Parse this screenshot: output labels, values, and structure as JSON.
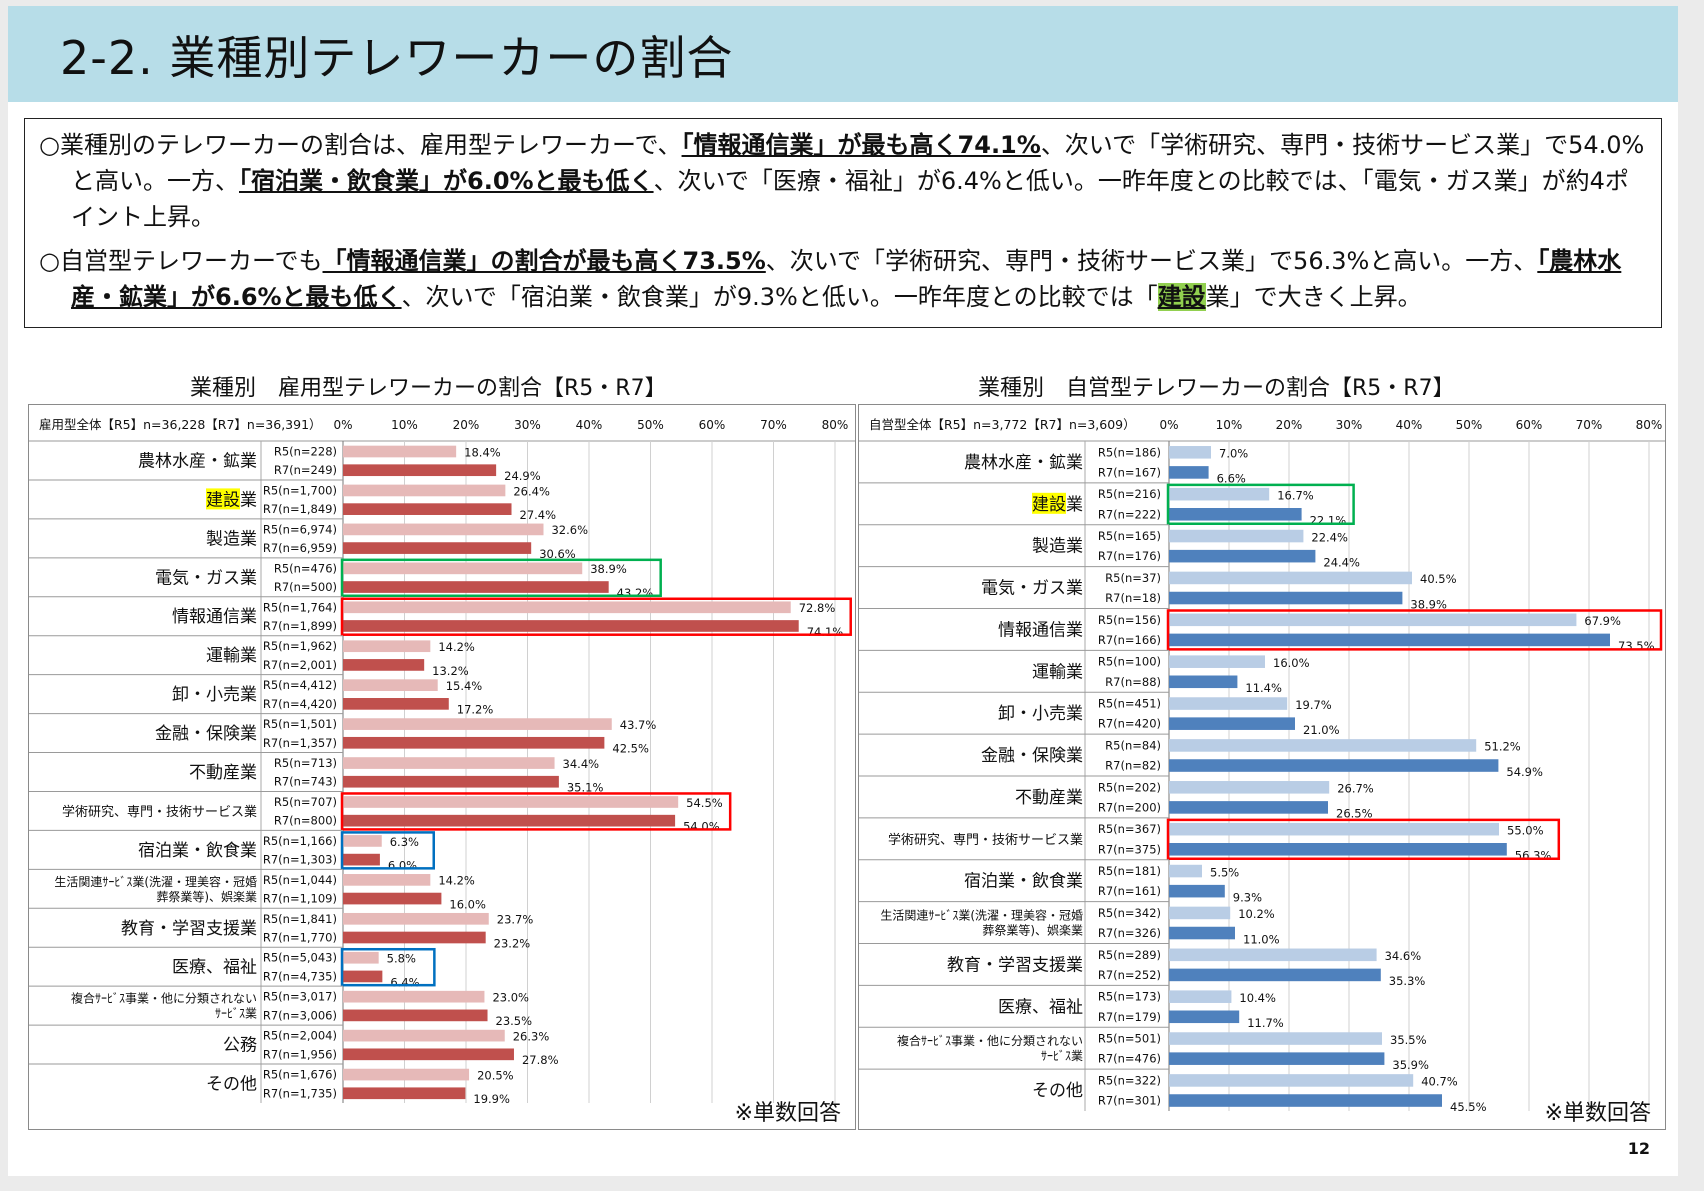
{
  "slide": {
    "title": "2-2. 業種別テレワーカーの割合",
    "page_number": "12",
    "summary": [
      [
        {
          "t": "○業種別のテレワーカーの割合は、雇用型テレワーカーで、"
        },
        {
          "t": "「情報通信業」が最も高く74.1%",
          "s": "hl"
        },
        {
          "t": "、次いで「学術研究、専門・技術サービス業」で54.0%と高い。一方、"
        },
        {
          "t": "「宿泊業・飲食業」が6.0%と最も低く",
          "s": "hl"
        },
        {
          "t": "、次いで「医療・福祉」が6.4%と低い。一昨年度との比較では、「電気・ガス業」が約4ポイント上昇。"
        }
      ],
      [
        {
          "t": "○自営型テレワーカーでも"
        },
        {
          "t": "「情報通信業」の割合が最も高く73.5%",
          "s": "hl"
        },
        {
          "t": "、次いで「学術研究、専門・技術サービス業」で56.3%と高い。一方、"
        },
        {
          "t": "「農林水産・鉱業」が6.6%と最も低く",
          "s": "hl"
        },
        {
          "t": "、次いで「宿泊業・飲食業」が9.3%と低い。一昨年度との比較では「"
        },
        {
          "t": "建設",
          "s": "mark"
        },
        {
          "t": "業」で大きく上昇。"
        }
      ]
    ],
    "note_left": "※単数回答",
    "note_right": "※単数回答"
  },
  "colors": {
    "left_r5": "#e6b9b8",
    "left_r7": "#c0504d",
    "right_r5": "#b9cde5",
    "right_r7": "#4f81bd",
    "box_red": "#ff0000",
    "box_green": "#00b050",
    "box_blue": "#0070c0",
    "highlight_yellow": "#ffff00"
  },
  "chart_data": [
    {
      "type": "bar",
      "orientation": "horizontal",
      "title": "業種別　雇用型テレワーカーの割合【R5・R7】",
      "header_label": "雇用型全体【R5】n=36,228【R7】n=36,391）",
      "xlim": [
        0,
        80
      ],
      "x_ticks": [
        "0%",
        "10%",
        "20%",
        "30%",
        "40%",
        "50%",
        "60%",
        "70%",
        "80%"
      ],
      "grid": true,
      "categories": [
        {
          "name": "農林水産・鉱業",
          "r5": {
            "label": "R5(n=228)",
            "value": 18.4,
            "text": "18.4%"
          },
          "r7": {
            "label": "R7(n=249)",
            "value": 24.9,
            "text": "24.9%"
          }
        },
        {
          "name": "建設業",
          "r5": {
            "label": "R5(n=1,700)",
            "value": 26.4,
            "text": "26.4%"
          },
          "r7": {
            "label": "R7(n=1,849)",
            "value": 27.4,
            "text": "27.4%"
          }
        },
        {
          "name": "製造業",
          "r5": {
            "label": "R5(n=6,974)",
            "value": 32.6,
            "text": "32.6%"
          },
          "r7": {
            "label": "R7(n=6,959)",
            "value": 30.6,
            "text": "30.6%"
          }
        },
        {
          "name": "電気・ガス業",
          "r5": {
            "label": "R5(n=476)",
            "value": 38.9,
            "text": "38.9%"
          },
          "r7": {
            "label": "R7(n=500)",
            "value": 43.2,
            "text": "43.2%"
          },
          "box": "green"
        },
        {
          "name": "情報通信業",
          "r5": {
            "label": "R5(n=1,764)",
            "value": 72.8,
            "text": "72.8%"
          },
          "r7": {
            "label": "R7(n=1,899)",
            "value": 74.1,
            "text": "74.1%"
          },
          "box": "red"
        },
        {
          "name": "運輸業",
          "r5": {
            "label": "R5(n=1,962)",
            "value": 14.2,
            "text": "14.2%"
          },
          "r7": {
            "label": "R7(n=2,001)",
            "value": 13.2,
            "text": "13.2%"
          }
        },
        {
          "name": "卸・小売業",
          "r5": {
            "label": "R5(n=4,412)",
            "value": 15.4,
            "text": "15.4%"
          },
          "r7": {
            "label": "R7(n=4,420)",
            "value": 17.2,
            "text": "17.2%"
          }
        },
        {
          "name": "金融・保険業",
          "r5": {
            "label": "R5(n=1,501)",
            "value": 43.7,
            "text": "43.7%"
          },
          "r7": {
            "label": "R7(n=1,357)",
            "value": 42.5,
            "text": "42.5%"
          }
        },
        {
          "name": "不動産業",
          "r5": {
            "label": "R5(n=713)",
            "value": 34.4,
            "text": "34.4%"
          },
          "r7": {
            "label": "R7(n=743)",
            "value": 35.1,
            "text": "35.1%"
          }
        },
        {
          "name": "学術研究、専門・技術サービス業",
          "r5": {
            "label": "R5(n=707)",
            "value": 54.5,
            "text": "54.5%"
          },
          "r7": {
            "label": "R7(n=800)",
            "value": 54.0,
            "text": "54.0%"
          },
          "box": "red"
        },
        {
          "name": "宿泊業・飲食業",
          "r5": {
            "label": "R5(n=1,166)",
            "value": 6.3,
            "text": "6.3%"
          },
          "r7": {
            "label": "R7(n=1,303)",
            "value": 6.0,
            "text": "6.0%"
          },
          "box": "blue"
        },
        {
          "name": "生活関連ｻｰﾋﾞｽ業(洗濯・理美容・冠婚|葬祭業等)、娯楽業",
          "r5": {
            "label": "R5(n=1,044)",
            "value": 14.2,
            "text": "14.2%"
          },
          "r7": {
            "label": "R7(n=1,109)",
            "value": 16.0,
            "text": "16.0%"
          }
        },
        {
          "name": "教育・学習支援業",
          "r5": {
            "label": "R5(n=1,841)",
            "value": 23.7,
            "text": "23.7%"
          },
          "r7": {
            "label": "R7(n=1,770)",
            "value": 23.2,
            "text": "23.2%"
          }
        },
        {
          "name": "医療、福祉",
          "r5": {
            "label": "R5(n=5,043)",
            "value": 5.8,
            "text": "5.8%"
          },
          "r7": {
            "label": "R7(n=4,735)",
            "value": 6.4,
            "text": "6.4%"
          },
          "box": "blue"
        },
        {
          "name": "複合ｻｰﾋﾞｽ事業・他に分類されない|ｻｰﾋﾞｽ業",
          "r5": {
            "label": "R5(n=3,017)",
            "value": 23.0,
            "text": "23.0%"
          },
          "r7": {
            "label": "R7(n=3,006)",
            "value": 23.5,
            "text": "23.5%"
          }
        },
        {
          "name": "公務",
          "r5": {
            "label": "R5(n=2,004)",
            "value": 26.3,
            "text": "26.3%"
          },
          "r7": {
            "label": "R7(n=1,956)",
            "value": 27.8,
            "text": "27.8%"
          }
        },
        {
          "name": "その他",
          "r5": {
            "label": "R5(n=1,676)",
            "value": 20.5,
            "text": "20.5%"
          },
          "r7": {
            "label": "R7(n=1,735)",
            "value": 19.9,
            "text": "19.9%"
          }
        }
      ]
    },
    {
      "type": "bar",
      "orientation": "horizontal",
      "title": "業種別　自営型テレワーカーの割合【R5・R7】",
      "header_label": "自営型全体【R5】n=3,772【R7】n=3,609）",
      "xlim": [
        0,
        80
      ],
      "x_ticks": [
        "0%",
        "10%",
        "20%",
        "30%",
        "40%",
        "50%",
        "60%",
        "70%",
        "80%"
      ],
      "grid": true,
      "categories": [
        {
          "name": "農林水産・鉱業",
          "r5": {
            "label": "R5(n=186)",
            "value": 7.0,
            "text": "7.0%"
          },
          "r7": {
            "label": "R7(n=167)",
            "value": 6.6,
            "text": "6.6%"
          }
        },
        {
          "name": "建設業",
          "r5": {
            "label": "R5(n=216)",
            "value": 16.7,
            "text": "16.7%"
          },
          "r7": {
            "label": "R7(n=222)",
            "value": 22.1,
            "text": "22.1%"
          },
          "box": "green"
        },
        {
          "name": "製造業",
          "r5": {
            "label": "R5(n=165)",
            "value": 22.4,
            "text": "22.4%"
          },
          "r7": {
            "label": "R7(n=176)",
            "value": 24.4,
            "text": "24.4%"
          }
        },
        {
          "name": "電気・ガス業",
          "r5": {
            "label": "R5(n=37)",
            "value": 40.5,
            "text": "40.5%"
          },
          "r7": {
            "label": "R7(n=18)",
            "value": 38.9,
            "text": "38.9%"
          }
        },
        {
          "name": "情報通信業",
          "r5": {
            "label": "R5(n=156)",
            "value": 67.9,
            "text": "67.9%"
          },
          "r7": {
            "label": "R7(n=166)",
            "value": 73.5,
            "text": "73.5%"
          },
          "box": "red"
        },
        {
          "name": "運輸業",
          "r5": {
            "label": "R5(n=100)",
            "value": 16.0,
            "text": "16.0%"
          },
          "r7": {
            "label": "R7(n=88)",
            "value": 11.4,
            "text": "11.4%"
          }
        },
        {
          "name": "卸・小売業",
          "r5": {
            "label": "R5(n=451)",
            "value": 19.7,
            "text": "19.7%"
          },
          "r7": {
            "label": "R7(n=420)",
            "value": 21.0,
            "text": "21.0%"
          }
        },
        {
          "name": "金融・保険業",
          "r5": {
            "label": "R5(n=84)",
            "value": 51.2,
            "text": "51.2%"
          },
          "r7": {
            "label": "R7(n=82)",
            "value": 54.9,
            "text": "54.9%"
          }
        },
        {
          "name": "不動産業",
          "r5": {
            "label": "R5(n=202)",
            "value": 26.7,
            "text": "26.7%"
          },
          "r7": {
            "label": "R7(n=200)",
            "value": 26.5,
            "text": "26.5%"
          }
        },
        {
          "name": "学術研究、専門・技術サービス業",
          "r5": {
            "label": "R5(n=367)",
            "value": 55.0,
            "text": "55.0%"
          },
          "r7": {
            "label": "R7(n=375)",
            "value": 56.3,
            "text": "56.3%"
          },
          "box": "red"
        },
        {
          "name": "宿泊業・飲食業",
          "r5": {
            "label": "R5(n=181)",
            "value": 5.5,
            "text": "5.5%"
          },
          "r7": {
            "label": "R7(n=161)",
            "value": 9.3,
            "text": "9.3%"
          }
        },
        {
          "name": "生活関連ｻｰﾋﾞｽ業(洗濯・理美容・冠婚|葬祭業等)、娯楽業",
          "r5": {
            "label": "R5(n=342)",
            "value": 10.2,
            "text": "10.2%"
          },
          "r7": {
            "label": "R7(n=326)",
            "value": 11.0,
            "text": "11.0%"
          }
        },
        {
          "name": "教育・学習支援業",
          "r5": {
            "label": "R5(n=289)",
            "value": 34.6,
            "text": "34.6%"
          },
          "r7": {
            "label": "R7(n=252)",
            "value": 35.3,
            "text": "35.3%"
          }
        },
        {
          "name": "医療、福祉",
          "r5": {
            "label": "R5(n=173)",
            "value": 10.4,
            "text": "10.4%"
          },
          "r7": {
            "label": "R7(n=179)",
            "value": 11.7,
            "text": "11.7%"
          }
        },
        {
          "name": "複合ｻｰﾋﾞｽ事業・他に分類されない|ｻｰﾋﾞｽ業",
          "r5": {
            "label": "R5(n=501)",
            "value": 35.5,
            "text": "35.5%"
          },
          "r7": {
            "label": "R7(n=476)",
            "value": 35.9,
            "text": "35.9%"
          }
        },
        {
          "name": "その他",
          "r5": {
            "label": "R5(n=322)",
            "value": 40.7,
            "text": "40.7%"
          },
          "r7": {
            "label": "R7(n=301)",
            "value": 45.5,
            "text": "45.5%"
          }
        }
      ]
    }
  ]
}
